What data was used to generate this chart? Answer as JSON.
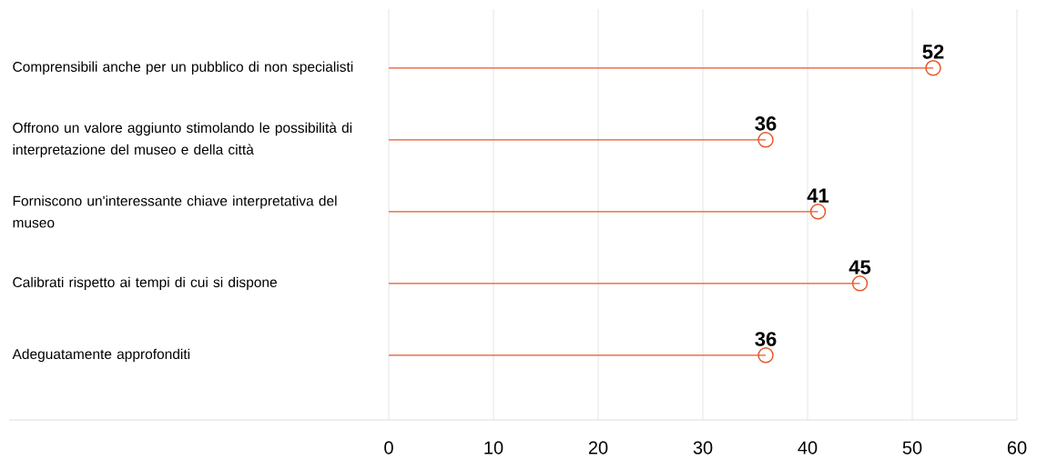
{
  "chart_data": {
    "type": "lollipop",
    "orientation": "horizontal",
    "categories": [
      "Comprensibili anche per un pubblico di non specialisti",
      "Offrono un valore aggiunto stimolando le possibilità di interpretazione del museo e della città",
      "Forniscono un'interessante chiave interpretativa del museo",
      "Calibrati rispetto ai tempi di cui si dispone",
      "Adeguatamente approfonditi"
    ],
    "values": [
      52,
      36,
      41,
      45,
      36
    ],
    "color": "#e8562a",
    "marker": "circle",
    "data_labels": true,
    "grid": "x",
    "xlim": [
      0,
      60
    ],
    "xticks": [
      0,
      10,
      20,
      30,
      40,
      50,
      60
    ]
  }
}
